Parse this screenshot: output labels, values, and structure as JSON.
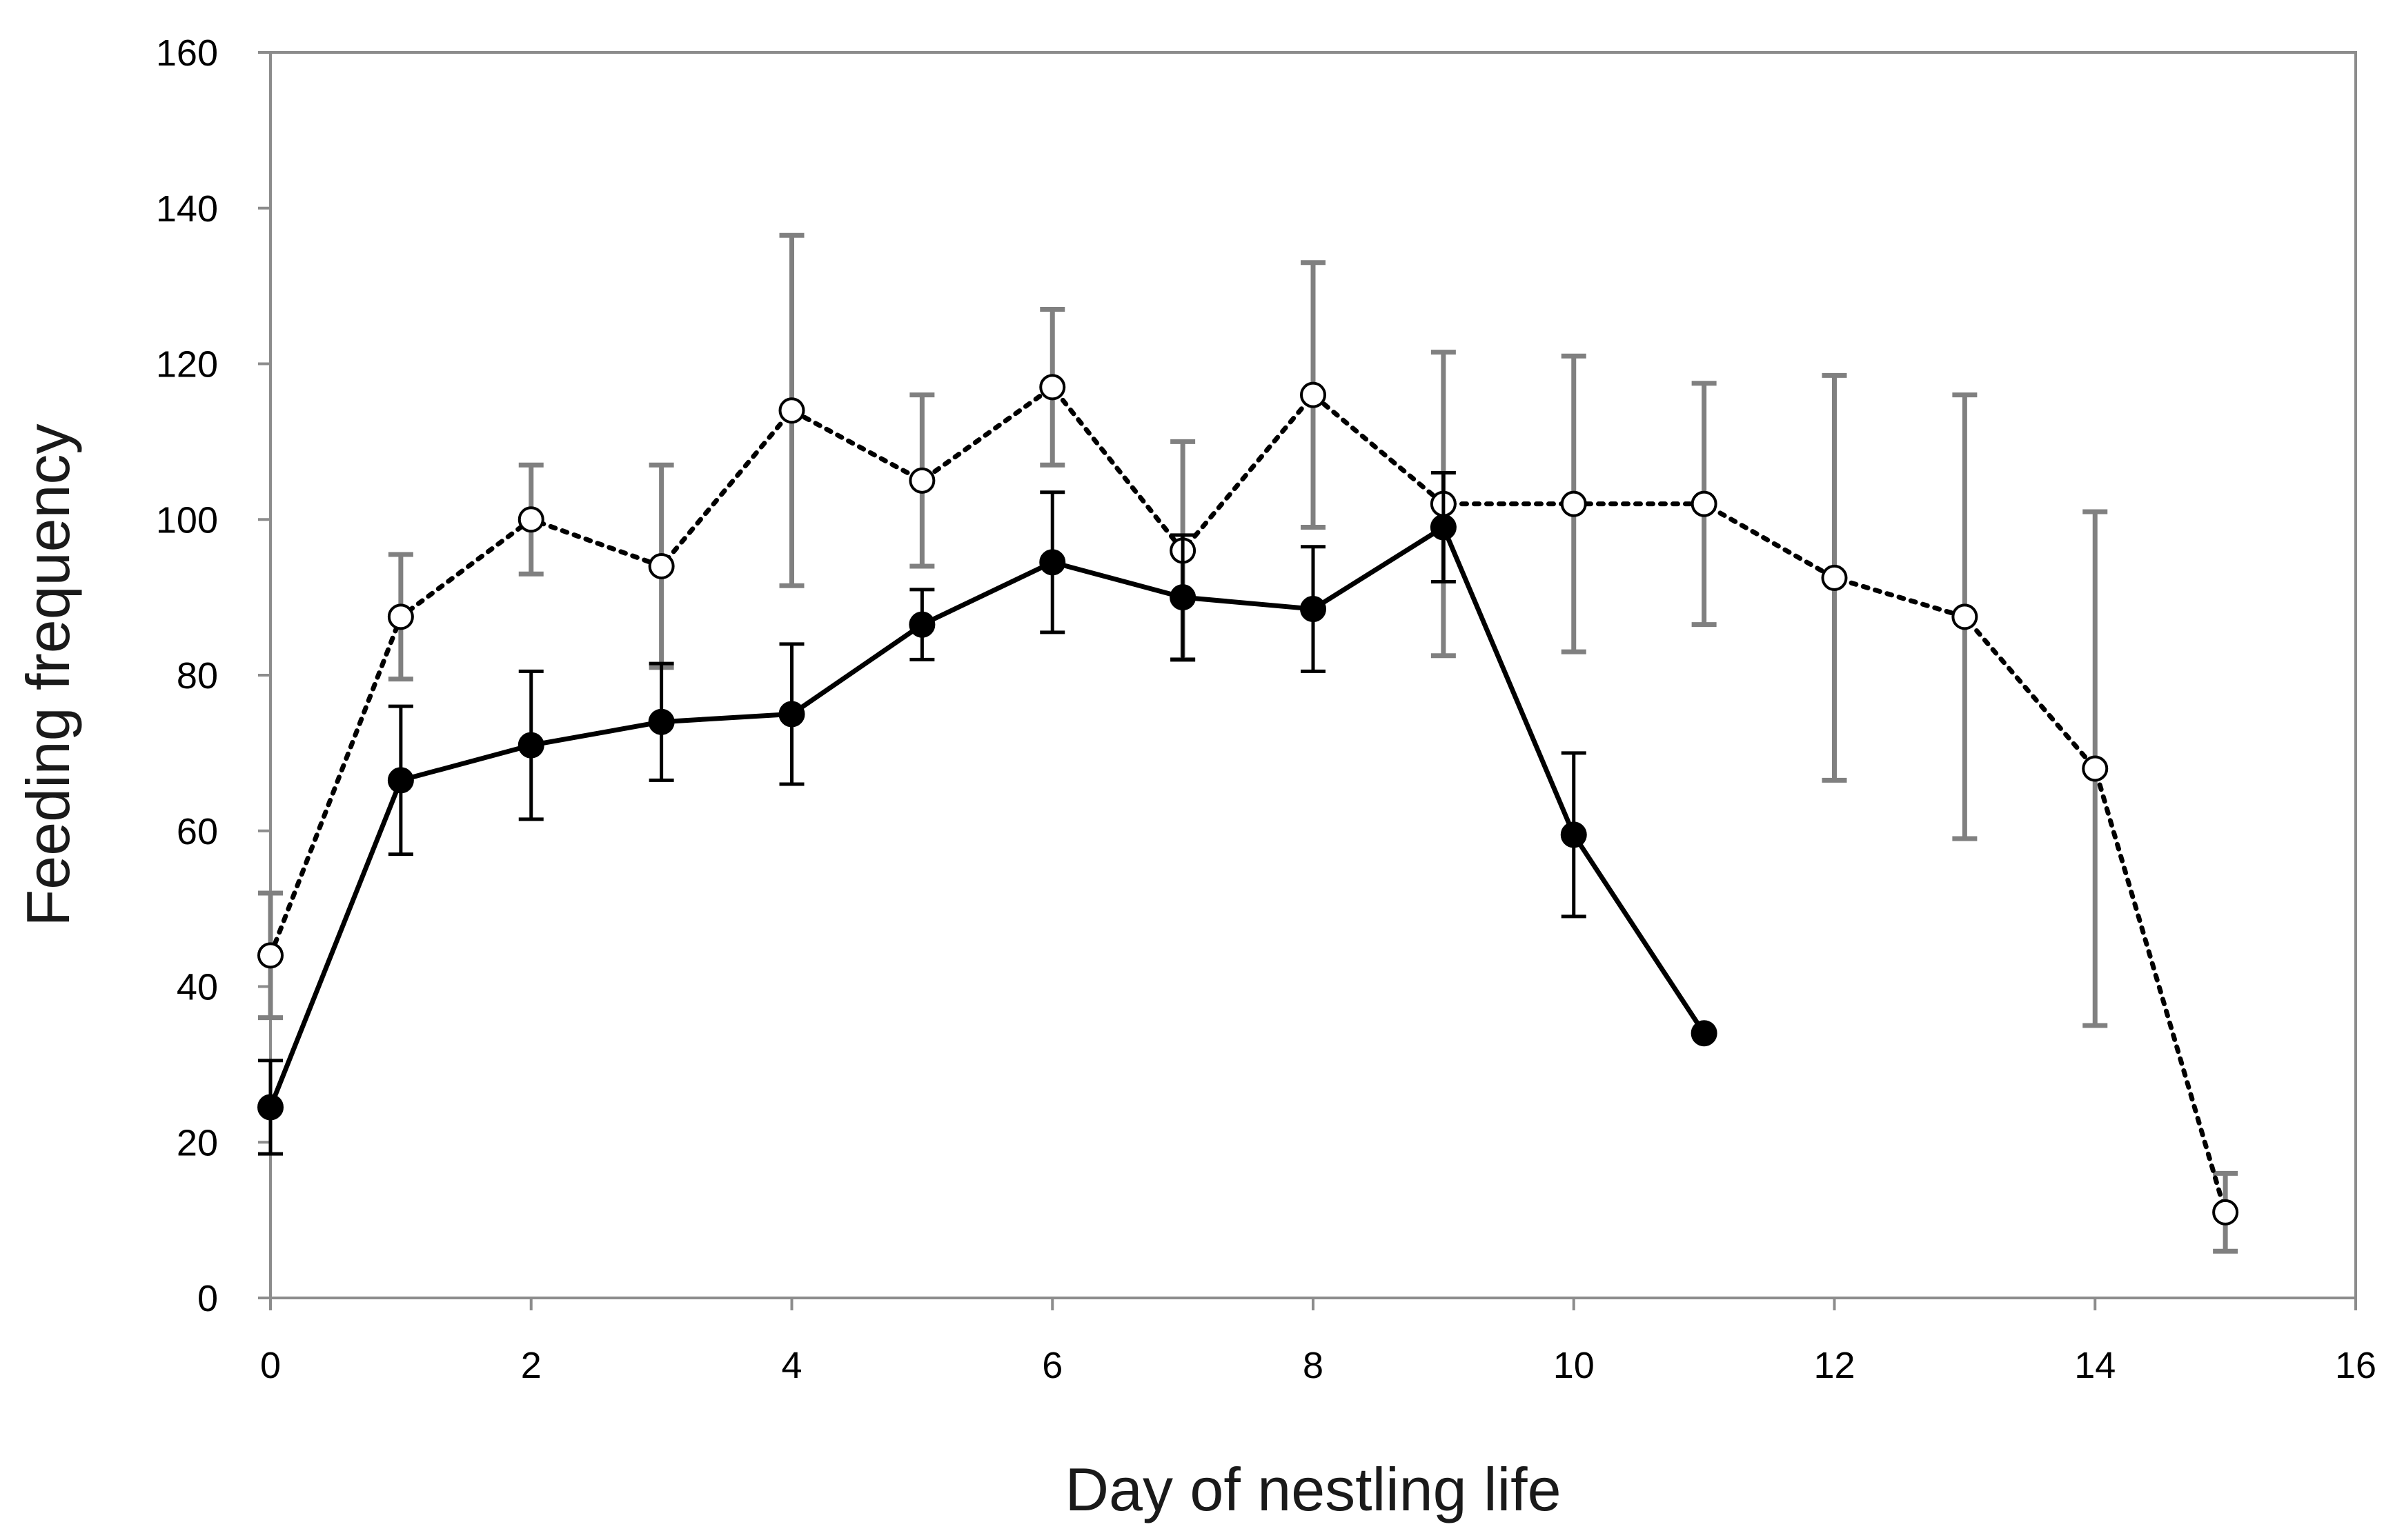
{
  "chart_data": {
    "type": "line",
    "title": "",
    "xlabel": "Day of nestling life",
    "ylabel": "Feeding frequency",
    "xlim": [
      0,
      16
    ],
    "ylim": [
      0,
      160
    ],
    "xticks": [
      0,
      2,
      4,
      6,
      8,
      10,
      12,
      14,
      16
    ],
    "yticks": [
      0,
      20,
      40,
      60,
      80,
      100,
      120,
      140,
      160
    ],
    "grid": false,
    "legend": "none",
    "series": [
      {
        "name": "open circles (dotted)",
        "marker": "open-circle",
        "line": "dotted",
        "color": "#000000",
        "error_color": "#808080",
        "x": [
          0,
          1,
          2,
          3,
          4,
          5,
          6,
          7,
          8,
          9,
          10,
          11,
          12,
          13,
          14,
          15
        ],
        "y": [
          44,
          87.5,
          100,
          94,
          114,
          105,
          117,
          96,
          116,
          102,
          102,
          102,
          92.5,
          87.5,
          68,
          11
        ],
        "err": [
          8,
          8,
          7,
          13,
          22.5,
          11,
          10,
          14,
          17,
          19.5,
          19,
          15.5,
          26,
          28.5,
          33,
          5
        ]
      },
      {
        "name": "filled circles (solid)",
        "marker": "filled-circle",
        "line": "solid",
        "color": "#000000",
        "error_color": "#000000",
        "x": [
          0,
          1,
          2,
          3,
          4,
          5,
          6,
          7,
          8,
          9,
          10,
          11
        ],
        "y": [
          24.5,
          66.5,
          71,
          74,
          75,
          86.5,
          94.5,
          90,
          88.5,
          99,
          59.5,
          34
        ],
        "err": [
          6,
          9.5,
          9.5,
          7.5,
          9,
          4.5,
          9,
          8,
          8,
          7,
          10.5,
          0
        ]
      }
    ]
  }
}
